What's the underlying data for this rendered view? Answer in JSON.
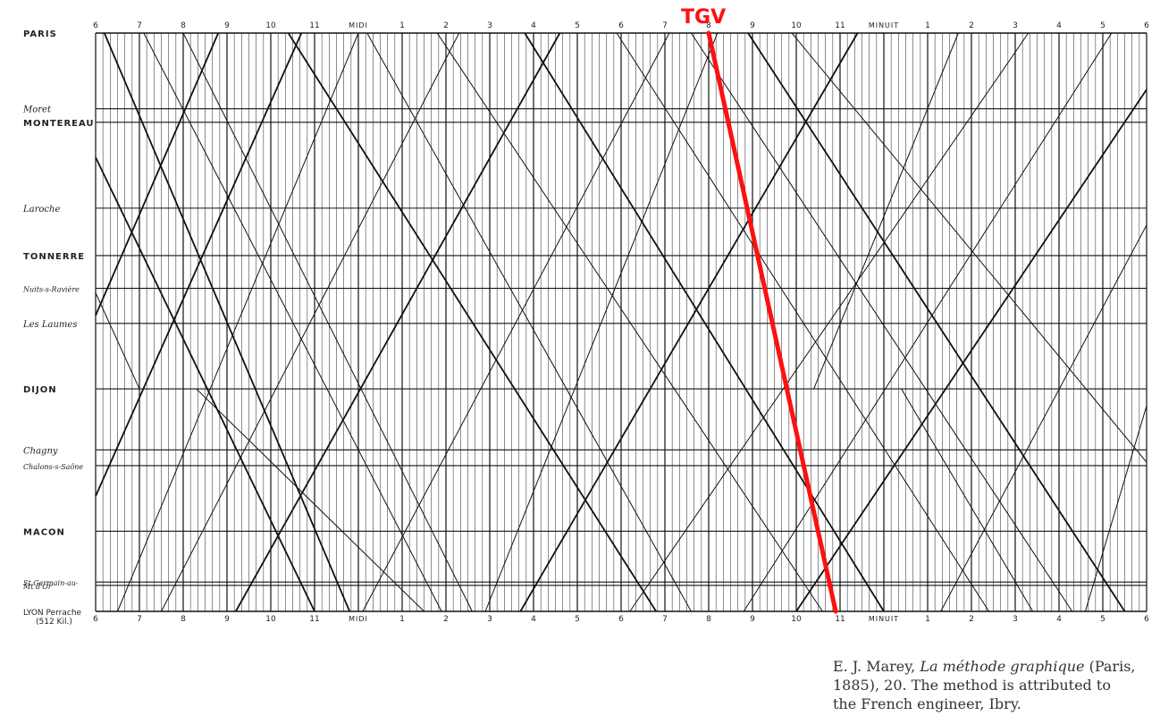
{
  "chart_data": {
    "type": "line",
    "time_axis": {
      "top_labels": [
        "6",
        "7",
        "8",
        "9",
        "10",
        "11",
        "MIDI",
        "1",
        "2",
        "3",
        "4",
        "5",
        "6",
        "7",
        "8",
        "9",
        "10",
        "11",
        "MINUIT",
        "1",
        "2",
        "3",
        "4",
        "5",
        "6"
      ],
      "bottom_labels": [
        "6",
        "7",
        "8",
        "9",
        "10",
        "11",
        "MIDI",
        "1",
        "2",
        "3",
        "4",
        "5",
        "6",
        "7",
        "8",
        "9",
        "10",
        "11",
        "MINUIT",
        "1",
        "2",
        "3",
        "4",
        "5",
        "6"
      ],
      "range_hours": [
        6,
        30
      ]
    },
    "stations": [
      {
        "name": "PARIS",
        "km": 0,
        "style": "caps"
      },
      {
        "name": "Moret",
        "km": 67,
        "style": "ital"
      },
      {
        "name": "MONTEREAU",
        "km": 79,
        "style": "caps"
      },
      {
        "name": "Laroche",
        "km": 155,
        "style": "ital"
      },
      {
        "name": "TONNERRE",
        "km": 197,
        "style": "caps"
      },
      {
        "name": "Nuits-s-Ravière",
        "km": 226,
        "style": "small"
      },
      {
        "name": "Les Laumes",
        "km": 257,
        "style": "ital"
      },
      {
        "name": "DIJON",
        "km": 315,
        "style": "caps"
      },
      {
        "name": "Chagny",
        "km": 369,
        "style": "ital"
      },
      {
        "name": "Chalons-s-Saône",
        "km": 383,
        "style": "small"
      },
      {
        "name": "MACON",
        "km": 441,
        "style": "caps"
      },
      {
        "name": "St Germain-au-",
        "km": 486,
        "style": "small"
      },
      {
        "name": "Mt d'Or",
        "km": 489,
        "style": "small"
      },
      {
        "name": "LYON Perrache",
        "km": 512,
        "style": "dist"
      }
    ],
    "distance_label": "(512 Kil.)",
    "series": [
      {
        "name": "TGV",
        "color": "#ff1010",
        "points": [
          [
            20.0,
            0
          ],
          [
            22.9,
            512
          ]
        ]
      }
    ],
    "historical_trains": [
      {
        "points": [
          [
            6.2,
            0
          ],
          [
            11.8,
            512
          ]
        ]
      },
      {
        "points": [
          [
            7.1,
            0
          ],
          [
            13.9,
            512
          ]
        ]
      },
      {
        "points": [
          [
            8.0,
            0
          ],
          [
            14.6,
            512
          ]
        ]
      },
      {
        "points": [
          [
            10.4,
            0
          ],
          [
            18.8,
            512
          ]
        ]
      },
      {
        "points": [
          [
            12.2,
            0
          ],
          [
            19.6,
            512
          ]
        ]
      },
      {
        "points": [
          [
            13.8,
            0
          ],
          [
            22.6,
            512
          ]
        ]
      },
      {
        "points": [
          [
            15.8,
            0
          ],
          [
            24.0,
            512
          ]
        ]
      },
      {
        "points": [
          [
            17.9,
            0
          ],
          [
            26.4,
            512
          ]
        ]
      },
      {
        "points": [
          [
            19.6,
            0
          ],
          [
            28.3,
            512
          ]
        ]
      },
      {
        "points": [
          [
            20.9,
            0
          ],
          [
            29.5,
            512
          ]
        ]
      },
      {
        "points": [
          [
            21.9,
            0
          ],
          [
            30.0,
            380
          ]
        ]
      },
      {
        "points": [
          [
            6.0,
            230
          ],
          [
            7.0,
            315
          ]
        ]
      },
      {
        "points": [
          [
            6.0,
            110
          ],
          [
            11.0,
            512
          ]
        ]
      },
      {
        "points": [
          [
            8.3,
            315
          ],
          [
            13.5,
            512
          ]
        ]
      },
      {
        "points": [
          [
            24.4,
            315
          ],
          [
            27.4,
            512
          ]
        ]
      },
      {
        "points": [
          [
            8.8,
            0
          ],
          [
            6.0,
            250
          ]
        ]
      },
      {
        "points": [
          [
            12.0,
            0
          ],
          [
            6.5,
            512
          ]
        ]
      },
      {
        "points": [
          [
            14.3,
            0
          ],
          [
            7.5,
            512
          ]
        ]
      },
      {
        "points": [
          [
            16.6,
            0
          ],
          [
            9.2,
            512
          ]
        ]
      },
      {
        "points": [
          [
            19.1,
            0
          ],
          [
            12.1,
            512
          ]
        ]
      },
      {
        "points": [
          [
            20.2,
            0
          ],
          [
            14.9,
            512
          ]
        ]
      },
      {
        "points": [
          [
            23.4,
            0
          ],
          [
            15.7,
            512
          ]
        ]
      },
      {
        "points": [
          [
            27.3,
            0
          ],
          [
            18.2,
            512
          ]
        ]
      },
      {
        "points": [
          [
            29.2,
            0
          ],
          [
            20.8,
            512
          ]
        ]
      },
      {
        "points": [
          [
            30.0,
            50
          ],
          [
            22.0,
            512
          ]
        ]
      },
      {
        "points": [
          [
            30.0,
            170
          ],
          [
            25.3,
            512
          ]
        ]
      },
      {
        "points": [
          [
            30.0,
            330
          ],
          [
            28.6,
            512
          ]
        ]
      },
      {
        "points": [
          [
            10.7,
            0
          ],
          [
            6.0,
            410
          ]
        ]
      },
      {
        "points": [
          [
            25.7,
            0
          ],
          [
            22.4,
            315
          ]
        ]
      }
    ]
  },
  "annotation": {
    "text": "TGV"
  },
  "caption": {
    "line1_prefix": "E. J. Marey,",
    "line1_title": "La méthode graphique",
    "line1_suffix": "(Paris,",
    "line2": "1885), 20. The method is attributed to",
    "line3": "the French engineer, Ibry."
  }
}
